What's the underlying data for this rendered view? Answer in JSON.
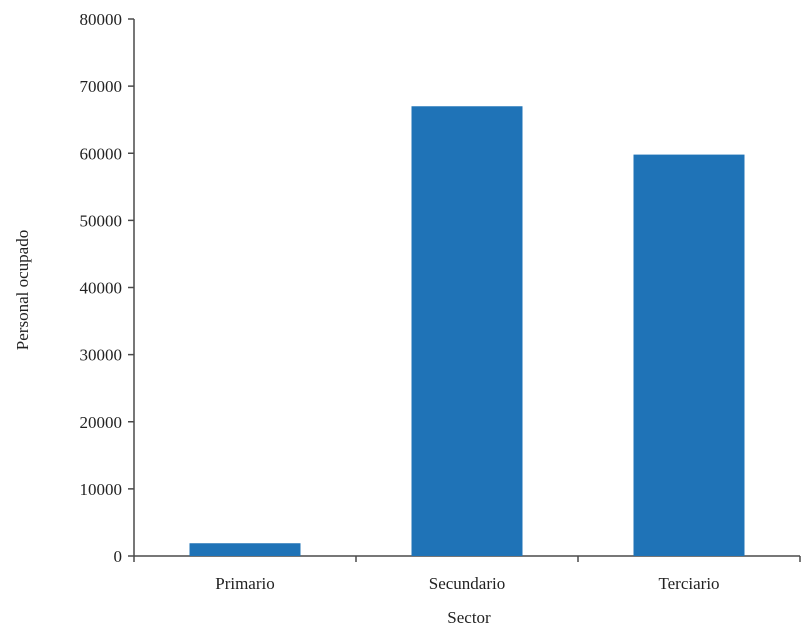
{
  "chart_data": {
    "type": "bar",
    "categories": [
      "Primario",
      "Secundario",
      "Terciario"
    ],
    "values": [
      1900,
      67000,
      59800
    ],
    "xlabel": "Sector",
    "ylabel": "Personal ocupado",
    "ylim": [
      0,
      80000
    ],
    "yticks": [
      0,
      10000,
      20000,
      30000,
      40000,
      50000,
      60000,
      70000,
      80000
    ],
    "grid": false,
    "legend": "none",
    "colors": {
      "bar": "#1f73b7",
      "axis": "#4a4a4a"
    }
  }
}
